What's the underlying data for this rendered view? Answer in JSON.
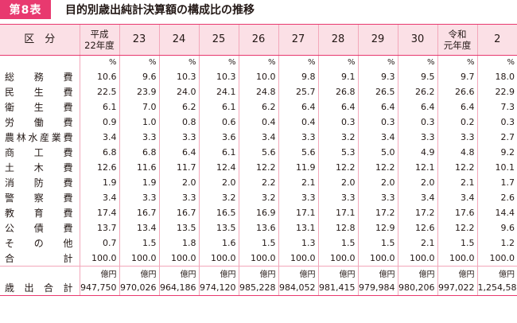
{
  "header": {
    "badge": "第8表",
    "title": "目的別歳出純計決算額の構成比の推移"
  },
  "columns": {
    "category": "区　分",
    "years": [
      {
        "line1": "平成",
        "line2": "22年度"
      },
      {
        "line1": "23",
        "line2": ""
      },
      {
        "line1": "24",
        "line2": ""
      },
      {
        "line1": "25",
        "line2": ""
      },
      {
        "line1": "26",
        "line2": ""
      },
      {
        "line1": "27",
        "line2": ""
      },
      {
        "line1": "28",
        "line2": ""
      },
      {
        "line1": "29",
        "line2": ""
      },
      {
        "line1": "30",
        "line2": ""
      },
      {
        "line1": "令和",
        "line2": "元年度"
      },
      {
        "line1": "2",
        "line2": ""
      }
    ]
  },
  "percent_unit": "%",
  "yen_unit": "億円",
  "rows": [
    {
      "label": "総務費",
      "values": [
        "10.6",
        "9.6",
        "10.3",
        "10.3",
        "10.0",
        "9.8",
        "9.1",
        "9.3",
        "9.5",
        "9.7",
        "18.0"
      ]
    },
    {
      "label": "民生費",
      "values": [
        "22.5",
        "23.9",
        "24.0",
        "24.1",
        "24.8",
        "25.7",
        "26.8",
        "26.5",
        "26.2",
        "26.6",
        "22.9"
      ]
    },
    {
      "label": "衛生費",
      "values": [
        "6.1",
        "7.0",
        "6.2",
        "6.1",
        "6.2",
        "6.4",
        "6.4",
        "6.4",
        "6.4",
        "6.4",
        "7.3"
      ]
    },
    {
      "label": "労働費",
      "values": [
        "0.9",
        "1.0",
        "0.8",
        "0.6",
        "0.4",
        "0.4",
        "0.3",
        "0.3",
        "0.3",
        "0.2",
        "0.3"
      ]
    },
    {
      "label": "農林水産業費",
      "values": [
        "3.4",
        "3.3",
        "3.3",
        "3.6",
        "3.4",
        "3.3",
        "3.2",
        "3.4",
        "3.3",
        "3.3",
        "2.7"
      ]
    },
    {
      "label": "商工費",
      "values": [
        "6.8",
        "6.8",
        "6.4",
        "6.1",
        "5.6",
        "5.6",
        "5.3",
        "5.0",
        "4.9",
        "4.8",
        "9.2"
      ]
    },
    {
      "label": "土木費",
      "values": [
        "12.6",
        "11.6",
        "11.7",
        "12.4",
        "12.2",
        "11.9",
        "12.2",
        "12.2",
        "12.1",
        "12.2",
        "10.1"
      ]
    },
    {
      "label": "消防費",
      "values": [
        "1.9",
        "1.9",
        "2.0",
        "2.0",
        "2.2",
        "2.1",
        "2.0",
        "2.0",
        "2.0",
        "2.1",
        "1.7"
      ]
    },
    {
      "label": "警察費",
      "values": [
        "3.4",
        "3.3",
        "3.3",
        "3.2",
        "3.2",
        "3.3",
        "3.3",
        "3.3",
        "3.4",
        "3.4",
        "2.6"
      ]
    },
    {
      "label": "教育費",
      "values": [
        "17.4",
        "16.7",
        "16.7",
        "16.5",
        "16.9",
        "17.1",
        "17.1",
        "17.2",
        "17.2",
        "17.6",
        "14.4"
      ]
    },
    {
      "label": "公債費",
      "values": [
        "13.7",
        "13.4",
        "13.5",
        "13.5",
        "13.6",
        "13.1",
        "12.8",
        "12.9",
        "12.6",
        "12.2",
        "9.6"
      ]
    },
    {
      "label": "その他",
      "values": [
        "0.7",
        "1.5",
        "1.8",
        "1.6",
        "1.5",
        "1.3",
        "1.5",
        "1.5",
        "2.1",
        "1.5",
        "1.2"
      ]
    },
    {
      "label": "合計",
      "values": [
        "100.0",
        "100.0",
        "100.0",
        "100.0",
        "100.0",
        "100.0",
        "100.0",
        "100.0",
        "100.0",
        "100.0",
        "100.0"
      ]
    }
  ],
  "total_row": {
    "label": "歳出合計",
    "values": [
      "947,750",
      "970,026",
      "964,186",
      "974,120",
      "985,228",
      "984,052",
      "981,415",
      "979,984",
      "980,206",
      "997,022",
      "1,254,588"
    ]
  }
}
